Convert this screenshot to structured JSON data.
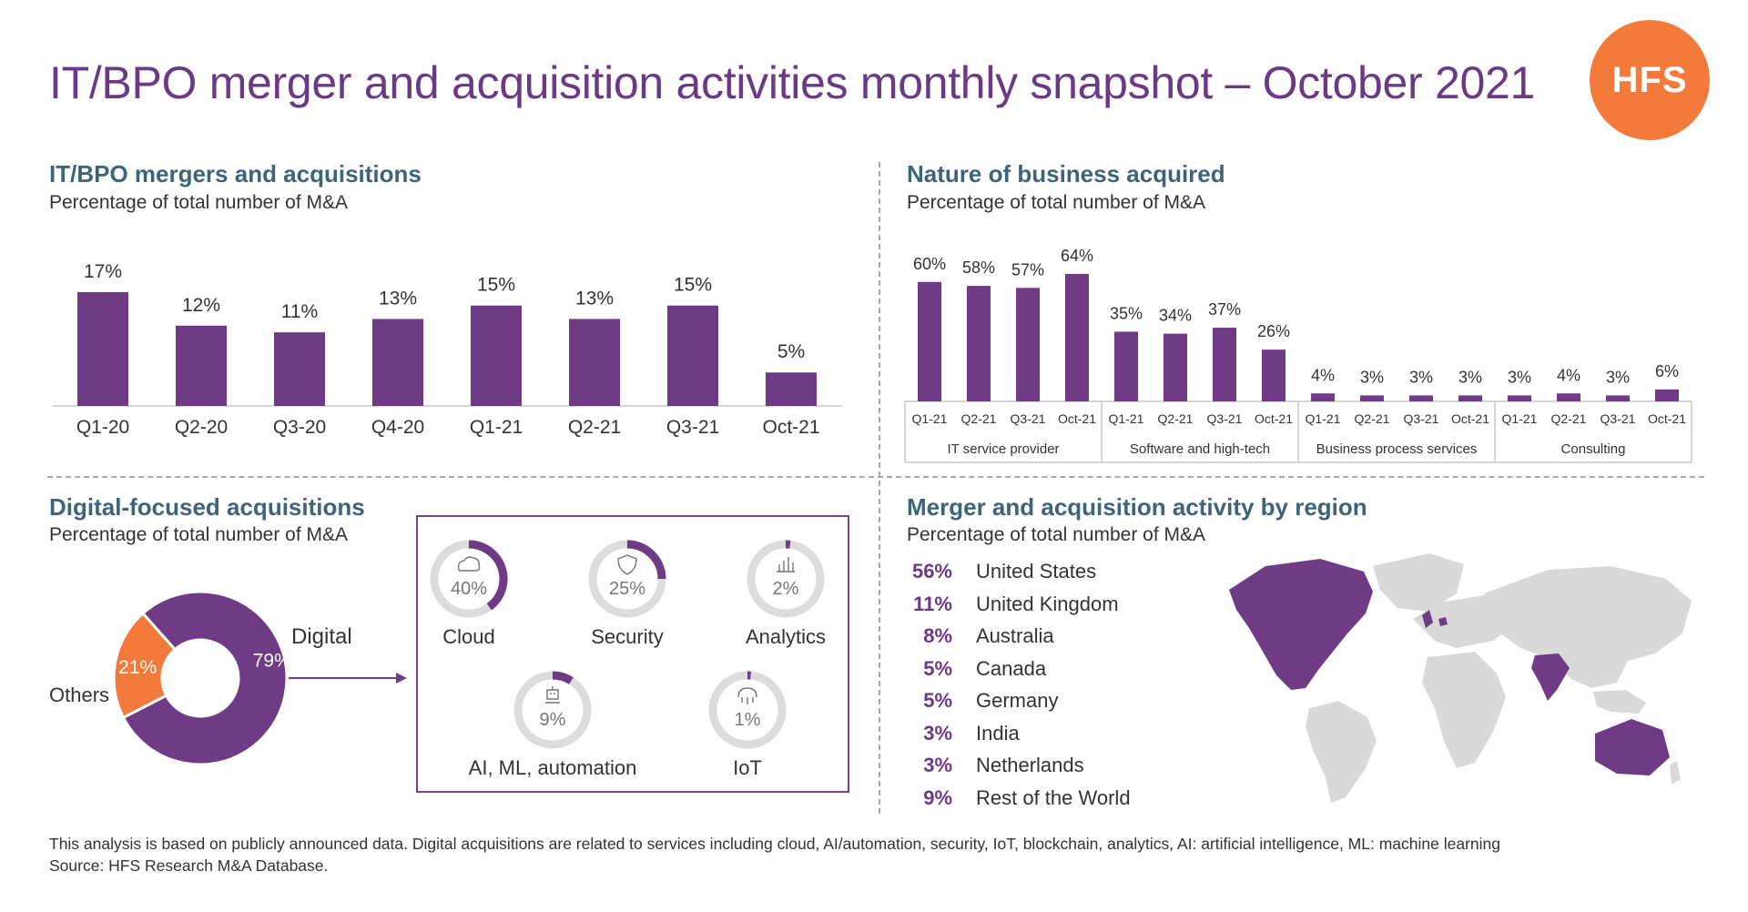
{
  "title": "IT/BPO merger and acquisition activities monthly snapshot – October 2021",
  "logo": "HFS",
  "colors": {
    "purple": "#6f3b85",
    "orange": "#f47a3c",
    "teal": "#3e6479",
    "gray": "#dcdcdc"
  },
  "sections": {
    "ma": {
      "title": "IT/BPO mergers and acquisitions",
      "subtitle": "Percentage of total number of M&A"
    },
    "nature": {
      "title": "Nature of business acquired",
      "subtitle": "Percentage of total number of M&A"
    },
    "digital": {
      "title": "Digital-focused acquisitions",
      "subtitle": "Percentage of total number of M&A"
    },
    "region": {
      "title": "Merger and acquisition activity by region",
      "subtitle": "Percentage of total number of M&A"
    }
  },
  "chart_data": [
    {
      "type": "bar",
      "categories": [
        "Q1-20",
        "Q2-20",
        "Q3-20",
        "Q4-20",
        "Q1-21",
        "Q2-21",
        "Q3-21",
        "Oct-21"
      ],
      "values": [
        17,
        12,
        11,
        13,
        15,
        13,
        15,
        5
      ],
      "value_labels": [
        "17%",
        "12%",
        "11%",
        "13%",
        "15%",
        "13%",
        "15%",
        "5%"
      ],
      "ylim": [
        0,
        20
      ]
    },
    {
      "type": "bar",
      "groups": [
        {
          "name": "IT service provider",
          "categories": [
            "Q1-21",
            "Q2-21",
            "Q3-21",
            "Oct-21"
          ],
          "values": [
            60,
            58,
            57,
            64
          ],
          "value_labels": [
            "60%",
            "58%",
            "57%",
            "64%"
          ]
        },
        {
          "name": "Software and high-tech",
          "categories": [
            "Q1-21",
            "Q2-21",
            "Q3-21",
            "Oct-21"
          ],
          "values": [
            35,
            34,
            37,
            26
          ],
          "value_labels": [
            "35%",
            "34%",
            "37%",
            "26%"
          ]
        },
        {
          "name": "Business process services",
          "categories": [
            "Q1-21",
            "Q2-21",
            "Q3-21",
            "Oct-21"
          ],
          "values": [
            4,
            3,
            3,
            3
          ],
          "value_labels": [
            "4%",
            "3%",
            "3%",
            "3%"
          ]
        },
        {
          "name": "Consulting",
          "categories": [
            "Q1-21",
            "Q2-21",
            "Q3-21",
            "Oct-21"
          ],
          "values": [
            3,
            4,
            3,
            6
          ],
          "value_labels": [
            "3%",
            "4%",
            "3%",
            "6%"
          ]
        }
      ],
      "ylim": [
        0,
        70
      ]
    },
    {
      "type": "pie",
      "donut": true,
      "labels": [
        "Digital",
        "Others"
      ],
      "values": [
        79,
        21
      ],
      "value_labels": [
        "79%",
        "21%"
      ],
      "colors": [
        "#6f3b85",
        "#f47a3c"
      ]
    },
    {
      "type": "pie",
      "donut": true,
      "small_multiples": true,
      "labels": [
        "Cloud",
        "Security",
        "Analytics",
        "AI, ML, automation",
        "IoT"
      ],
      "values": [
        40,
        25,
        2,
        9,
        1
      ],
      "value_labels": [
        "40%",
        "25%",
        "2%",
        "9%",
        "1%"
      ],
      "icons": [
        "cloud-icon",
        "shield-icon",
        "bar-chart-icon",
        "robot-icon",
        "iot-icon"
      ]
    },
    {
      "type": "table",
      "highlight_map": "world",
      "highlighted_regions": [
        "North America",
        "United Kingdom",
        "Netherlands",
        "India",
        "Australia"
      ],
      "rows": [
        {
          "value": "56%",
          "name": "United States"
        },
        {
          "value": "11%",
          "name": "United Kingdom"
        },
        {
          "value": "8%",
          "name": "Australia"
        },
        {
          "value": "5%",
          "name": "Canada"
        },
        {
          "value": "5%",
          "name": "Germany"
        },
        {
          "value": "3%",
          "name": "India"
        },
        {
          "value": "3%",
          "name": "Netherlands"
        },
        {
          "value": "9%",
          "name": "Rest of the World"
        }
      ]
    }
  ],
  "footnote": {
    "line1": "This analysis is based on publicly announced data. Digital acquisitions are related to services including cloud, AI/automation, security, IoT, blockchain, analytics, AI: artificial intelligence, ML: machine learning",
    "line2": "Source: HFS Research M&A Database."
  }
}
